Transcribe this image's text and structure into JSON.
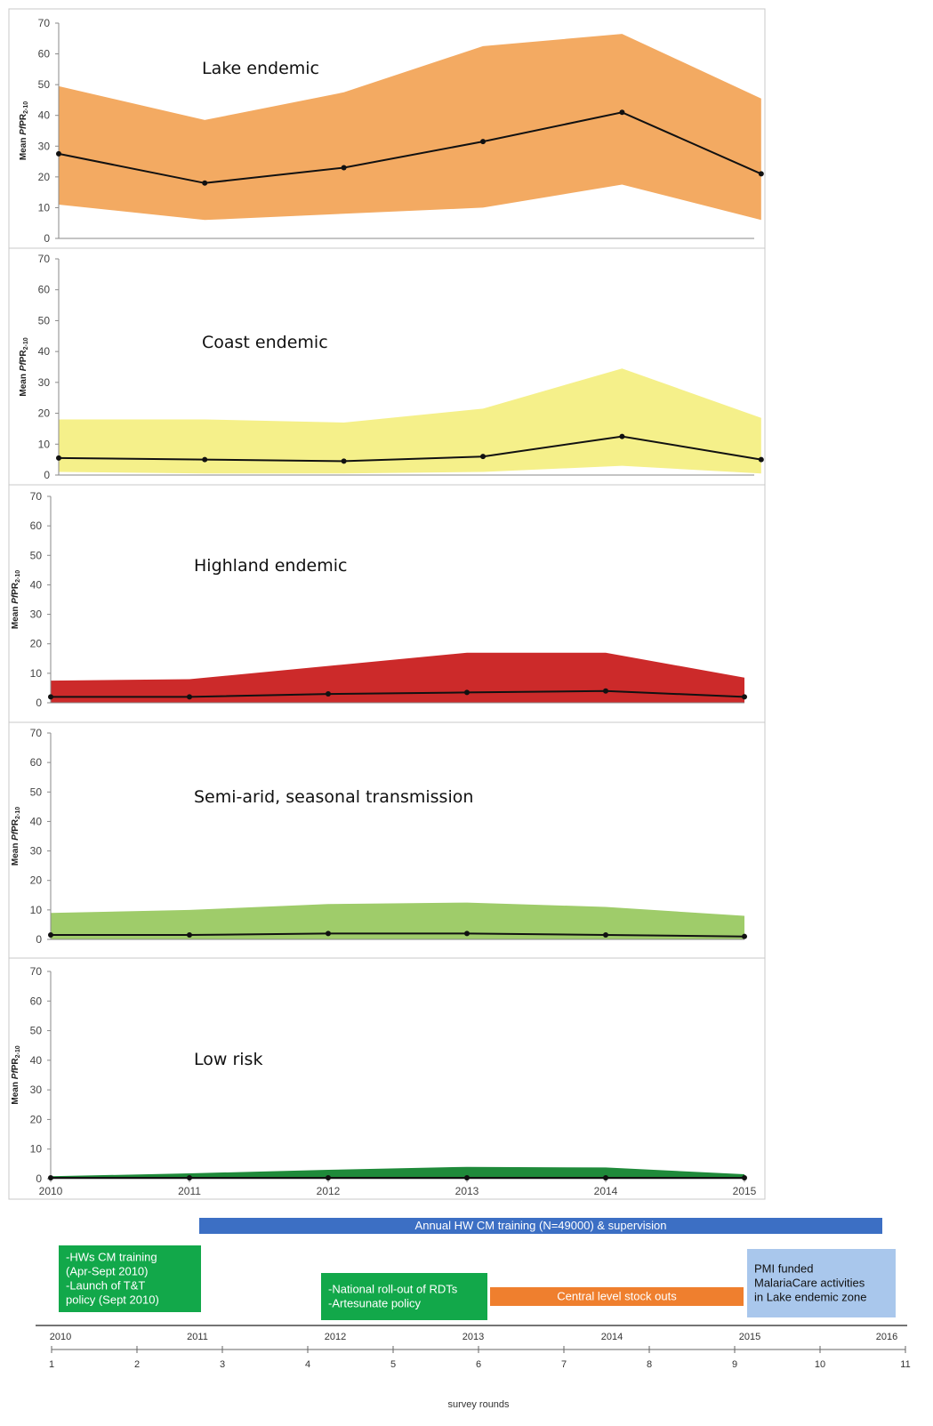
{
  "chart_data": [
    {
      "type": "area",
      "title": "Lake endemic",
      "ylabel": "Mean PfPR2-10",
      "ylim": [
        0,
        70
      ],
      "yticks": [
        0,
        10,
        20,
        30,
        40,
        50,
        60,
        70
      ],
      "fill_color": "#f3aa62",
      "points": [
        {
          "x": 2010.0,
          "mean": 27.5,
          "lower": 11,
          "upper": 49.5
        },
        {
          "x": 2011.05,
          "mean": 18,
          "lower": 6,
          "upper": 38.5
        },
        {
          "x": 2012.05,
          "mean": 23,
          "lower": 8,
          "upper": 47.5
        },
        {
          "x": 2013.05,
          "mean": 31.5,
          "lower": 10,
          "upper": 62.5
        },
        {
          "x": 2014.05,
          "mean": 41,
          "lower": 17.5,
          "upper": 66.5
        },
        {
          "x": 2015.05,
          "mean": 21,
          "lower": 6,
          "upper": 45.5
        }
      ]
    },
    {
      "type": "area",
      "title": "Coast endemic",
      "ylabel": "Mean PfPR2-10",
      "ylim": [
        0,
        70
      ],
      "yticks": [
        0,
        10,
        20,
        30,
        40,
        50,
        60,
        70
      ],
      "fill_color": "#f5f08a",
      "points": [
        {
          "x": 2010.0,
          "mean": 5.5,
          "lower": 1,
          "upper": 18
        },
        {
          "x": 2011.05,
          "mean": 5,
          "lower": 0.5,
          "upper": 18
        },
        {
          "x": 2012.05,
          "mean": 4.5,
          "lower": 0.5,
          "upper": 17
        },
        {
          "x": 2013.05,
          "mean": 6,
          "lower": 1,
          "upper": 21.5
        },
        {
          "x": 2014.05,
          "mean": 12.5,
          "lower": 3,
          "upper": 34.5
        },
        {
          "x": 2015.05,
          "mean": 5,
          "lower": 0.5,
          "upper": 18.5
        }
      ]
    },
    {
      "type": "area",
      "title": "Highland endemic",
      "ylabel": "Mean PfPR2-10",
      "ylim": [
        0,
        70
      ],
      "yticks": [
        0,
        10,
        20,
        30,
        40,
        50,
        60,
        70
      ],
      "fill_color": "#cc2a2a",
      "points": [
        {
          "x": 2010.0,
          "mean": 2,
          "lower": 0,
          "upper": 7.5
        },
        {
          "x": 2011.0,
          "mean": 2,
          "lower": 0,
          "upper": 8
        },
        {
          "x": 2012.0,
          "mean": 3,
          "lower": 0,
          "upper": 12.5
        },
        {
          "x": 2013.0,
          "mean": 3.5,
          "lower": 0,
          "upper": 17
        },
        {
          "x": 2014.0,
          "mean": 4,
          "lower": 0,
          "upper": 17
        },
        {
          "x": 2015.0,
          "mean": 2,
          "lower": 0,
          "upper": 8.5
        }
      ]
    },
    {
      "type": "area",
      "title": "Semi-arid, seasonal transmission",
      "ylabel": "Mean PfPR2-10",
      "ylim": [
        0,
        70
      ],
      "yticks": [
        0,
        10,
        20,
        30,
        40,
        50,
        60,
        70
      ],
      "fill_color": "#9fcc6a",
      "points": [
        {
          "x": 2010.0,
          "mean": 1.5,
          "lower": 0,
          "upper": 9
        },
        {
          "x": 2011.0,
          "mean": 1.5,
          "lower": 0,
          "upper": 10
        },
        {
          "x": 2012.0,
          "mean": 2,
          "lower": 0,
          "upper": 12
        },
        {
          "x": 2013.0,
          "mean": 2,
          "lower": 0,
          "upper": 12.5
        },
        {
          "x": 2014.0,
          "mean": 1.5,
          "lower": 0,
          "upper": 11
        },
        {
          "x": 2015.0,
          "mean": 1,
          "lower": 0,
          "upper": 8
        }
      ]
    },
    {
      "type": "area",
      "title": "Low risk",
      "ylabel": "Mean PfPR2-10",
      "ylim": [
        0,
        70
      ],
      "yticks": [
        0,
        10,
        20,
        30,
        40,
        50,
        60,
        70
      ],
      "fill_color": "#1f8a3a",
      "xticks": [
        "2010",
        "2011",
        "2012",
        "2013",
        "2014",
        "2015"
      ],
      "points": [
        {
          "x": 2010.0,
          "mean": 0.3,
          "lower": 0,
          "upper": 0.8
        },
        {
          "x": 2011.0,
          "mean": 0.3,
          "lower": 0,
          "upper": 1.8
        },
        {
          "x": 2012.0,
          "mean": 0.3,
          "lower": 0,
          "upper": 3
        },
        {
          "x": 2013.0,
          "mean": 0.3,
          "lower": 0,
          "upper": 4
        },
        {
          "x": 2014.0,
          "mean": 0.3,
          "lower": 0,
          "upper": 3.8
        },
        {
          "x": 2015.0,
          "mean": 0.3,
          "lower": 0,
          "upper": 1.5
        }
      ]
    }
  ],
  "timeline": {
    "year_ticks": [
      "2010",
      "2011",
      "2012",
      "2013",
      "2014",
      "2015",
      "2016"
    ],
    "round_ticks": [
      "1",
      "2",
      "3",
      "4",
      "5",
      "6",
      "7",
      "8",
      "9",
      "10",
      "11"
    ],
    "rounds_label": "survey rounds",
    "events": [
      {
        "label_lines": [
          "Annual HW CM training (N=49000) & supervision"
        ],
        "color": "#3c6fc4",
        "text_color": "#ffffff",
        "start": 2011.0,
        "end": 2016.0
      },
      {
        "label_lines": [
          "-HWs CM training",
          "(Apr-Sept 2010)",
          "-Launch of T&T",
          "policy (Sept 2010)"
        ],
        "color": "#12a84a",
        "text_color": "#ffffff",
        "start": 2010.0,
        "end": 2011.0
      },
      {
        "label_lines": [
          "-National roll-out of RDTs",
          "-Artesunate policy"
        ],
        "color": "#12a84a",
        "text_color": "#ffffff",
        "start": 2012.0,
        "end": 2013.0
      },
      {
        "label_lines": [
          "Central level stock outs"
        ],
        "color": "#ef7f2e",
        "text_color": "#ffffff",
        "start": 2013.1,
        "end": 2015.0
      },
      {
        "label_lines": [
          "PMI funded",
          "MalariaCare activities",
          "in Lake endemic zone"
        ],
        "color": "#a9c7ec",
        "text_color": "#111111",
        "start": 2015.0,
        "end": 2016.0
      }
    ]
  }
}
